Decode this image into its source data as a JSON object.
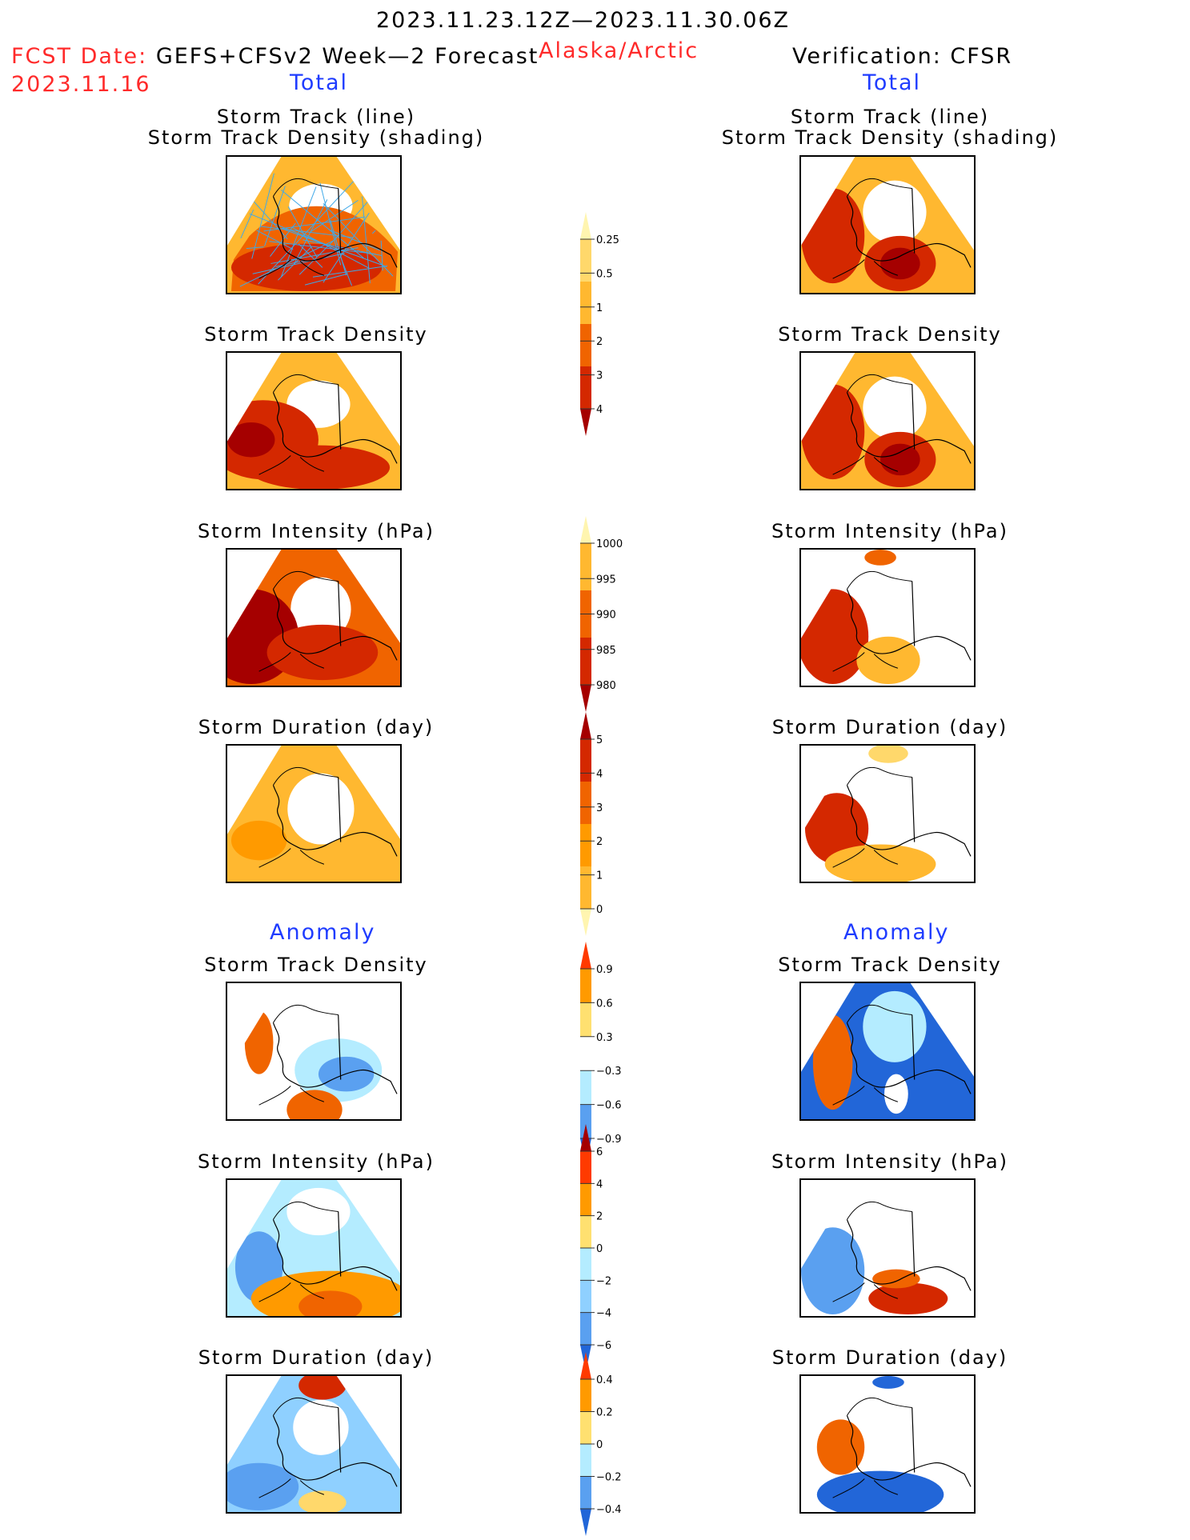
{
  "header": {
    "period": "2023.11.23.12Z—2023.11.30.06Z",
    "fcst_label": "FCST Date:",
    "fcst_model": "GEFS+CFSv2 Week—2 Forecast",
    "fcst_date": "2023.11.16",
    "region": "Alaska/Arctic",
    "verification": "Verification: CFSR",
    "left_total": "Total",
    "right_total": "Total",
    "left_anomaly": "Anomaly",
    "right_anomaly": "Anomaly"
  },
  "panels": {
    "track_line": "Storm Track (line)",
    "track_shading": "Storm Track Density (shading)",
    "density": "Storm Track Density",
    "intensity": "Storm Intensity (hPa)",
    "duration": "Storm Duration (day)"
  },
  "colors": {
    "cream": "#fff5b0",
    "light_yellow": "#ffd86b",
    "amber": "#ffb830",
    "orange": "#ff9a00",
    "dark_orange": "#f06400",
    "red": "#d42800",
    "dark_red": "#a50000",
    "light_blue": "#b4ecff",
    "sky_blue": "#8fd0ff",
    "mid_blue": "#5aa0f0",
    "blue": "#2266d8",
    "track_line": "#3fa8e8"
  },
  "chart_data": [
    {
      "type": "heatmap",
      "title": "Storm Track Density",
      "colorbar_levels": [
        "0.25",
        "0.5",
        "1",
        "2",
        "3",
        "4"
      ],
      "colorbar_colors": [
        "#fff5b0",
        "#ffd86b",
        "#ffb830",
        "#f06400",
        "#d42800",
        "#a50000"
      ]
    },
    {
      "type": "heatmap",
      "title": "Storm Intensity (hPa)",
      "colorbar_levels": [
        "1000",
        "995",
        "990",
        "985",
        "980"
      ],
      "colorbar_colors": [
        "#fff5b0",
        "#ffb830",
        "#f06400",
        "#d42800",
        "#a50000"
      ]
    },
    {
      "type": "heatmap",
      "title": "Storm Duration (day)",
      "colorbar_levels": [
        "5",
        "4",
        "3",
        "2",
        "1",
        "0"
      ],
      "colorbar_colors": [
        "#a50000",
        "#d42800",
        "#f06400",
        "#ff9a00",
        "#ffb830",
        "#fff5b0"
      ]
    },
    {
      "type": "heatmap",
      "title": "Anomaly Storm Track Density",
      "colorbar_levels": [
        "0.9",
        "0.6",
        "0.3",
        "−0.3",
        "−0.6",
        "−0.9"
      ],
      "colorbar_colors": [
        "#ff3a00",
        "#ff9a00",
        "#ffe070",
        "#ffffff",
        "#b4ecff",
        "#5aa0f0",
        "#2266d8"
      ]
    },
    {
      "type": "heatmap",
      "title": "Anomaly Storm Intensity (hPa)",
      "colorbar_levels": [
        "6",
        "4",
        "2",
        "0",
        "−2",
        "−4",
        "−6"
      ],
      "colorbar_colors": [
        "#a50000",
        "#ff3a00",
        "#ff9a00",
        "#ffe070",
        "#b4ecff",
        "#8fd0ff",
        "#5aa0f0",
        "#2266d8"
      ]
    },
    {
      "type": "heatmap",
      "title": "Anomaly Storm Duration (day)",
      "colorbar_levels": [
        "0.4",
        "0.2",
        "0",
        "−0.2",
        "−0.4"
      ],
      "colorbar_colors": [
        "#ff3a00",
        "#ff9a00",
        "#ffe070",
        "#b4ecff",
        "#5aa0f0",
        "#2266d8"
      ]
    }
  ]
}
